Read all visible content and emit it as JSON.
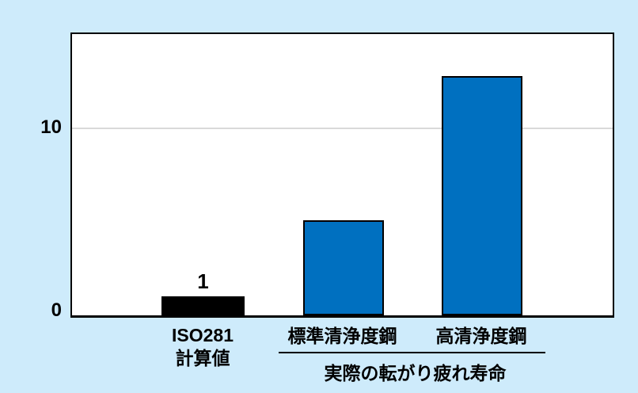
{
  "chart_data": {
    "type": "bar",
    "title": "",
    "categories": [
      "ISO281\n計算値",
      "標準清浄度鋼",
      "高清浄度鋼"
    ],
    "values": [
      1,
      5,
      12.6
    ],
    "data_labels": [
      "1",
      "",
      ""
    ],
    "bar_colors": [
      "#000000",
      "#0070C0",
      "#0070C0"
    ],
    "bar_border_color": "#000000",
    "group_label": "実際の転がり疲れ寿命",
    "group_members": [
      "標準清浄度鋼",
      "高清浄度鋼"
    ],
    "xlabel": "",
    "ylabel": "",
    "ylim": [
      0,
      15
    ],
    "yticks": [
      0,
      10
    ],
    "grid": "single horizontal gridline at y=10",
    "legend": "none",
    "colors": {
      "page_background": "#CEEBFB",
      "plot_background": "#FFFFFF",
      "gridline": "#D9D9D9",
      "axis": "#000000",
      "text": "#000000"
    }
  }
}
